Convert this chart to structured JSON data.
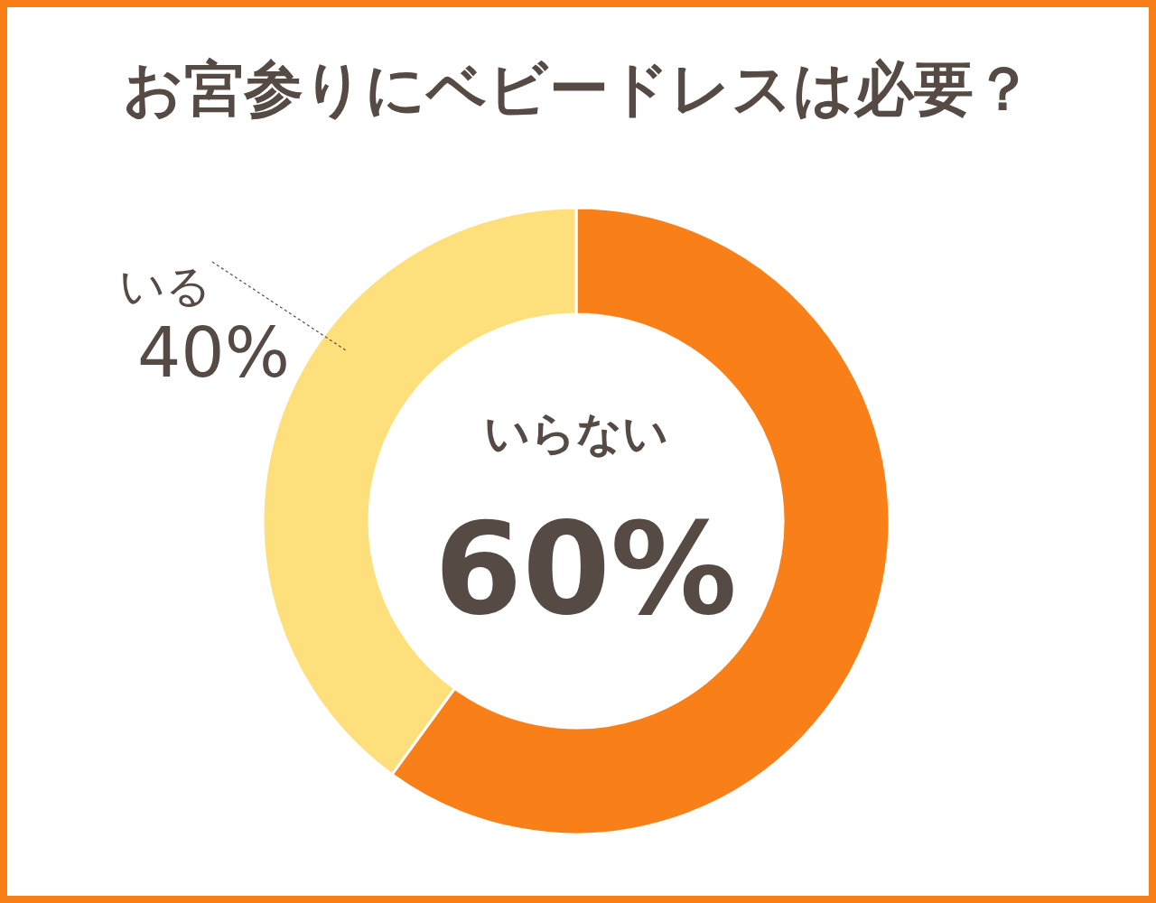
{
  "chart_data": {
    "type": "donut",
    "title": "お宮参りにベビードレスは必要？",
    "categories": [
      "いらない",
      "いる"
    ],
    "values": [
      60,
      40
    ],
    "colors": [
      "#f98019",
      "#fde07c"
    ],
    "value_labels": [
      "60%",
      "40%"
    ]
  }
}
